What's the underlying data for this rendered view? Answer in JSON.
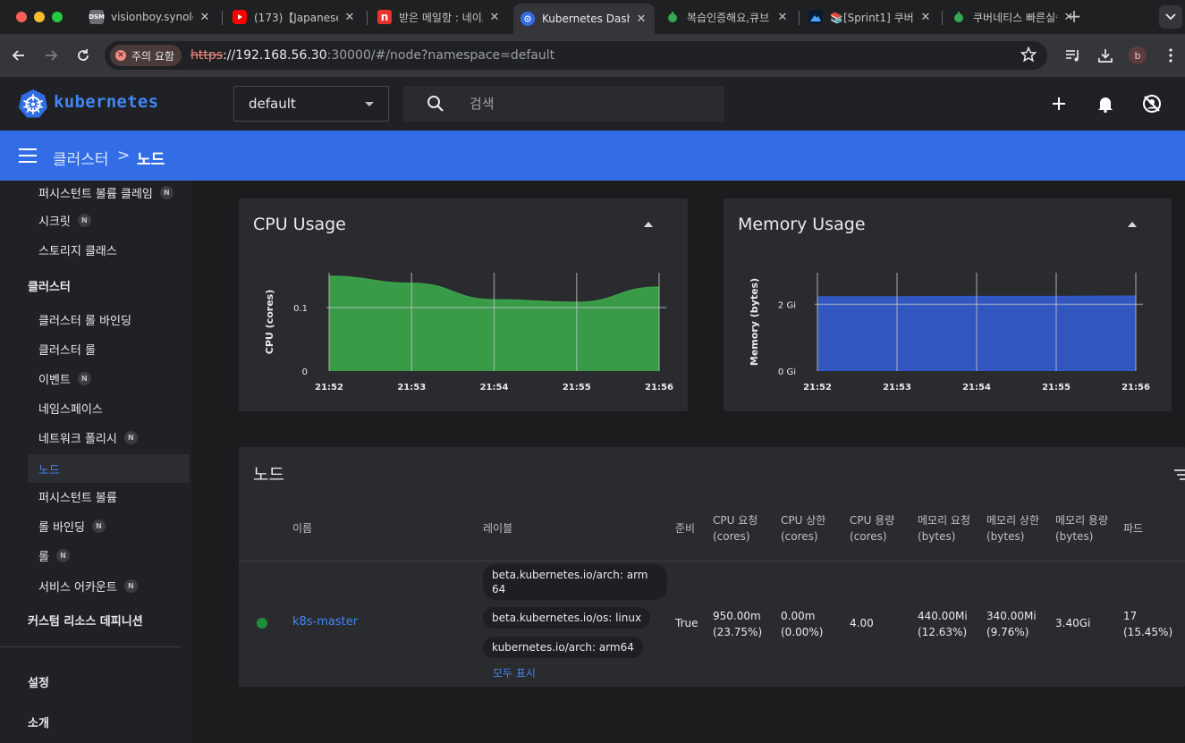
{
  "browser": {
    "tabs": [
      {
        "title": "visionboy.synology",
        "favicon": "dsm-icon",
        "fav_text": "DSM"
      },
      {
        "title": "(173)【Japanese",
        "favicon": "youtube-icon"
      },
      {
        "title": "받은 메일함 : 네이트",
        "favicon": "mail-icon"
      },
      {
        "title": "Kubernetes Dashboard",
        "favicon": "kubernetes-icon",
        "active": true
      },
      {
        "title": "복습인증해요,큐브",
        "favicon": "leaf-icon"
      },
      {
        "title": "📚[Sprint1] 쿠버",
        "favicon": "mountain-icon"
      },
      {
        "title": "쿠버네티스 빠른실습",
        "favicon": "leaf-icon"
      }
    ],
    "security_chip": "주의 요함",
    "url_scheme": "https",
    "url_host": "://192.168.56.30",
    "url_path": ":30000/#/node?namespace=default",
    "profile_initial": "b"
  },
  "header": {
    "brand": "kubernetes",
    "namespace": "default",
    "search_placeholder": "검색"
  },
  "breadcrumb": {
    "parent": "클러스터",
    "separator": ">",
    "current": "노드"
  },
  "sidebar": {
    "items": [
      {
        "label": "퍼시스턴트 볼륨 클레임",
        "badge": "N"
      },
      {
        "label": "시크릿",
        "badge": "N"
      },
      {
        "label": "스토리지 클래스"
      },
      {
        "label": "클러스터",
        "section": true
      },
      {
        "label": "클러스터 롤 바인딩"
      },
      {
        "label": "클러스터 롤"
      },
      {
        "label": "이벤트",
        "badge": "N"
      },
      {
        "label": "네임스페이스"
      },
      {
        "label": "네트워크 폴리시",
        "badge": "N"
      },
      {
        "label": "노드",
        "active": true
      },
      {
        "label": "퍼시스턴트 볼륨"
      },
      {
        "label": "롤 바인딩",
        "badge": "N"
      },
      {
        "label": "롤",
        "badge": "N"
      },
      {
        "label": "서비스 어카운트",
        "badge": "N"
      },
      {
        "label": "커스텀 리소스 데피니션",
        "section": true
      },
      {
        "label": "설정",
        "section": true
      },
      {
        "label": "소개",
        "section": true
      }
    ]
  },
  "chart_data": [
    {
      "type": "area",
      "title": "CPU Usage",
      "ylabel": "CPU (cores)",
      "xlabel": "",
      "x": [
        "21:52",
        "21:53",
        "21:54",
        "21:55",
        "21:56"
      ],
      "y_ticks": [
        "0",
        "0.1"
      ],
      "ylim": [
        0,
        0.155
      ],
      "values": [
        0.149,
        0.138,
        0.112,
        0.108,
        0.132
      ],
      "color": "#3aa04a",
      "grid": true
    },
    {
      "type": "area",
      "title": "Memory Usage",
      "ylabel": "Memory (bytes)",
      "xlabel": "",
      "x": [
        "21:52",
        "21:53",
        "21:54",
        "21:55",
        "21:56"
      ],
      "y_ticks": [
        "0 Gi",
        "2 Gi"
      ],
      "ylim": [
        0,
        2.95
      ],
      "values": [
        2.22,
        2.22,
        2.23,
        2.23,
        2.24
      ],
      "color": "#3258c8",
      "grid": true
    }
  ],
  "nodes_table": {
    "title": "노드",
    "columns": [
      "이름",
      "레이블",
      "준비",
      "CPU 요청\n(cores)",
      "CPU 상한\n(cores)",
      "CPU 용량\n(cores)",
      "메모리 요청\n(bytes)",
      "메모리 상한\n(bytes)",
      "메모리 용량\n(bytes)",
      "파드"
    ],
    "rows": [
      {
        "status": "running",
        "name": "k8s-master",
        "labels": [
          "beta.kubernetes.io/arch: arm\n64",
          "beta.kubernetes.io/os: linux",
          "kubernetes.io/arch: arm64"
        ],
        "show_all": "모두 표시",
        "ready": "True",
        "cpu_requests": "950.00m\n(23.75%)",
        "cpu_limits": "0.00m\n(0.00%)",
        "cpu_capacity": "4.00",
        "memory_requests": "440.00Mi\n(12.63%)",
        "memory_limits": "340.00Mi\n(9.76%)",
        "memory_capacity": "3.40Gi",
        "pods": "17\n(15.45%)"
      }
    ]
  },
  "colors": {
    "accent": "#326de6",
    "link": "#4285f4",
    "status_ok": "#1e8e3e"
  }
}
